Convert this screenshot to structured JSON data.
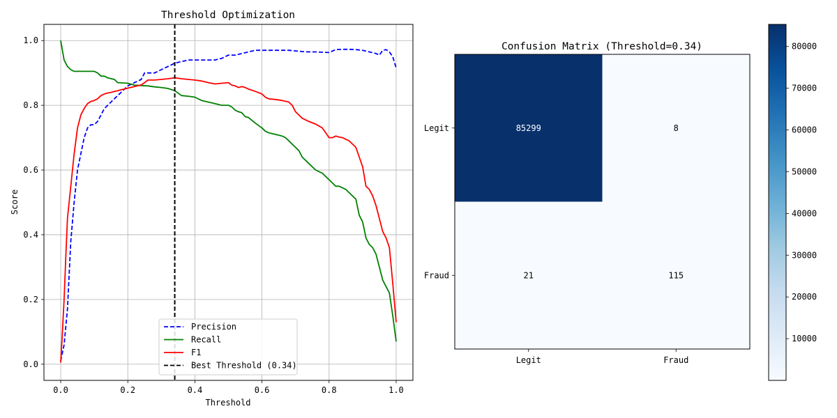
{
  "chart_data": [
    {
      "type": "line",
      "title": "Threshold Optimization",
      "xlabel": "Threshold",
      "ylabel": "Score",
      "xlim": [
        -0.05,
        1.05
      ],
      "ylim": [
        -0.05,
        1.05
      ],
      "xticks": [
        0.0,
        0.2,
        0.4,
        0.6,
        0.8,
        1.0
      ],
      "xtick_labels": [
        "0.0",
        "0.2",
        "0.4",
        "0.6",
        "0.8",
        "1.0"
      ],
      "yticks": [
        0.0,
        0.2,
        0.4,
        0.6,
        0.8,
        1.0
      ],
      "ytick_labels": [
        "0.0",
        "0.2",
        "0.4",
        "0.6",
        "0.8",
        "1.0"
      ],
      "grid": true,
      "legend_position": "lower-center",
      "series": [
        {
          "name": "Precision",
          "color": "#0000ff",
          "dash": "dashed",
          "x": [
            0.0,
            0.01,
            0.02,
            0.03,
            0.04,
            0.05,
            0.06,
            0.07,
            0.08,
            0.09,
            0.1,
            0.11,
            0.12,
            0.13,
            0.14,
            0.15,
            0.16,
            0.17,
            0.18,
            0.19,
            0.2,
            0.22,
            0.24,
            0.25,
            0.26,
            0.28,
            0.3,
            0.32,
            0.34,
            0.36,
            0.38,
            0.4,
            0.42,
            0.44,
            0.46,
            0.48,
            0.5,
            0.52,
            0.54,
            0.56,
            0.58,
            0.6,
            0.62,
            0.64,
            0.66,
            0.68,
            0.7,
            0.72,
            0.74,
            0.76,
            0.78,
            0.8,
            0.82,
            0.84,
            0.86,
            0.88,
            0.9,
            0.92,
            0.94,
            0.95,
            0.96,
            0.97,
            0.98,
            0.99,
            1.0
          ],
          "y": [
            0.01,
            0.06,
            0.17,
            0.38,
            0.5,
            0.6,
            0.65,
            0.7,
            0.73,
            0.74,
            0.74,
            0.75,
            0.77,
            0.79,
            0.8,
            0.81,
            0.82,
            0.83,
            0.84,
            0.85,
            0.86,
            0.87,
            0.88,
            0.9,
            0.9,
            0.9,
            0.91,
            0.92,
            0.93,
            0.935,
            0.94,
            0.94,
            0.94,
            0.94,
            0.94,
            0.945,
            0.955,
            0.955,
            0.96,
            0.965,
            0.97,
            0.97,
            0.97,
            0.97,
            0.97,
            0.97,
            0.968,
            0.966,
            0.965,
            0.965,
            0.964,
            0.963,
            0.972,
            0.973,
            0.973,
            0.972,
            0.97,
            0.965,
            0.96,
            0.955,
            0.97,
            0.972,
            0.965,
            0.95,
            0.915
          ]
        },
        {
          "name": "Recall",
          "color": "#008000",
          "dash": "solid",
          "x": [
            0.0,
            0.01,
            0.02,
            0.03,
            0.04,
            0.05,
            0.1,
            0.11,
            0.12,
            0.13,
            0.14,
            0.16,
            0.17,
            0.2,
            0.22,
            0.26,
            0.28,
            0.3,
            0.32,
            0.34,
            0.36,
            0.38,
            0.4,
            0.42,
            0.44,
            0.46,
            0.48,
            0.5,
            0.51,
            0.52,
            0.53,
            0.54,
            0.55,
            0.56,
            0.58,
            0.6,
            0.61,
            0.62,
            0.64,
            0.66,
            0.67,
            0.68,
            0.69,
            0.7,
            0.71,
            0.72,
            0.74,
            0.76,
            0.78,
            0.8,
            0.81,
            0.82,
            0.83,
            0.84,
            0.85,
            0.86,
            0.87,
            0.88,
            0.89,
            0.9,
            0.91,
            0.92,
            0.93,
            0.94,
            0.95,
            0.96,
            0.97,
            0.98,
            0.99,
            1.0
          ],
          "y": [
            1.0,
            0.94,
            0.92,
            0.91,
            0.905,
            0.905,
            0.905,
            0.9,
            0.89,
            0.89,
            0.885,
            0.88,
            0.87,
            0.868,
            0.862,
            0.86,
            0.857,
            0.855,
            0.852,
            0.845,
            0.83,
            0.828,
            0.825,
            0.815,
            0.81,
            0.805,
            0.8,
            0.8,
            0.795,
            0.785,
            0.78,
            0.777,
            0.765,
            0.762,
            0.745,
            0.73,
            0.72,
            0.715,
            0.71,
            0.705,
            0.7,
            0.69,
            0.68,
            0.67,
            0.66,
            0.64,
            0.62,
            0.6,
            0.59,
            0.57,
            0.56,
            0.55,
            0.55,
            0.545,
            0.54,
            0.53,
            0.52,
            0.51,
            0.46,
            0.44,
            0.39,
            0.37,
            0.36,
            0.34,
            0.3,
            0.26,
            0.24,
            0.22,
            0.15,
            0.07
          ]
        },
        {
          "name": "F1",
          "color": "#ff0000",
          "dash": "solid",
          "x": [
            0.0,
            0.005,
            0.01,
            0.015,
            0.02,
            0.03,
            0.04,
            0.05,
            0.06,
            0.07,
            0.08,
            0.09,
            0.1,
            0.11,
            0.12,
            0.13,
            0.14,
            0.15,
            0.16,
            0.17,
            0.18,
            0.19,
            0.2,
            0.22,
            0.24,
            0.25,
            0.26,
            0.28,
            0.3,
            0.32,
            0.34,
            0.36,
            0.38,
            0.4,
            0.42,
            0.44,
            0.46,
            0.48,
            0.5,
            0.51,
            0.52,
            0.53,
            0.54,
            0.55,
            0.56,
            0.58,
            0.6,
            0.61,
            0.62,
            0.64,
            0.66,
            0.68,
            0.69,
            0.7,
            0.71,
            0.72,
            0.74,
            0.76,
            0.78,
            0.8,
            0.81,
            0.82,
            0.83,
            0.84,
            0.85,
            0.86,
            0.87,
            0.88,
            0.89,
            0.9,
            0.91,
            0.92,
            0.93,
            0.94,
            0.95,
            0.96,
            0.97,
            0.98,
            0.99,
            1.0
          ],
          "y": [
            0.005,
            0.1,
            0.2,
            0.33,
            0.45,
            0.55,
            0.65,
            0.73,
            0.77,
            0.79,
            0.805,
            0.812,
            0.815,
            0.82,
            0.83,
            0.835,
            0.838,
            0.84,
            0.843,
            0.845,
            0.848,
            0.85,
            0.853,
            0.858,
            0.863,
            0.87,
            0.878,
            0.878,
            0.88,
            0.882,
            0.885,
            0.882,
            0.88,
            0.878,
            0.875,
            0.87,
            0.866,
            0.868,
            0.87,
            0.862,
            0.86,
            0.855,
            0.858,
            0.855,
            0.85,
            0.843,
            0.835,
            0.825,
            0.82,
            0.818,
            0.815,
            0.81,
            0.8,
            0.78,
            0.77,
            0.76,
            0.75,
            0.742,
            0.73,
            0.7,
            0.7,
            0.705,
            0.702,
            0.7,
            0.695,
            0.69,
            0.68,
            0.67,
            0.64,
            0.61,
            0.55,
            0.54,
            0.52,
            0.49,
            0.45,
            0.41,
            0.39,
            0.36,
            0.25,
            0.13
          ]
        },
        {
          "name": "Best Threshold (0.34)",
          "color": "#000000",
          "dash": "dashed",
          "kind": "vline",
          "x": 0.34
        }
      ]
    },
    {
      "type": "heatmap",
      "title": "Confusion Matrix (Threshold=0.34)",
      "row_labels": [
        "Legit",
        "Fraud"
      ],
      "col_labels": [
        "Legit",
        "Fraud"
      ],
      "values": [
        [
          85299,
          8
        ],
        [
          21,
          115
        ]
      ],
      "cell_labels": [
        [
          "85299",
          "8"
        ],
        [
          "21",
          "115"
        ]
      ],
      "colormap": "Blues",
      "colorbar_range": [
        8,
        85299
      ],
      "colorbar_ticks": [
        10000,
        20000,
        30000,
        40000,
        50000,
        60000,
        70000,
        80000
      ],
      "colorbar_tick_labels": [
        "10000",
        "20000",
        "30000",
        "40000",
        "50000",
        "60000",
        "70000",
        "80000"
      ]
    }
  ]
}
